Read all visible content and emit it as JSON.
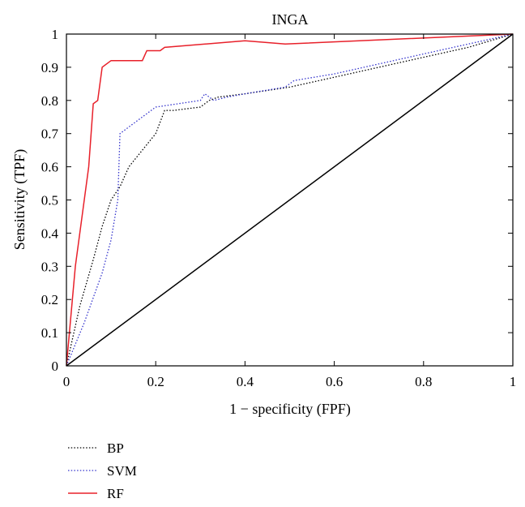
{
  "chart_data": {
    "type": "line",
    "title": "INGA",
    "xlabel": "1 − specificity (FPF)",
    "ylabel": "Sensitivity (TPF)",
    "xlim": [
      0,
      1
    ],
    "ylim": [
      0,
      1
    ],
    "xticks": [
      "0",
      "0.2",
      "0.4",
      "0.6",
      "0.8",
      "1"
    ],
    "yticks": [
      "0",
      "0.1",
      "0.2",
      "0.3",
      "0.4",
      "0.5",
      "0.6",
      "0.7",
      "0.8",
      "0.9",
      "1"
    ],
    "grid": false,
    "legend_position": "below",
    "series": [
      {
        "name": "BP",
        "color": "#000000",
        "style": "dotted",
        "x": [
          0,
          0.03,
          0.06,
          0.08,
          0.1,
          0.12,
          0.14,
          0.17,
          0.2,
          0.22,
          0.24,
          0.3,
          0.32,
          0.34,
          0.4,
          0.5,
          0.6,
          0.7,
          0.8,
          0.9,
          1.0
        ],
        "y": [
          0,
          0.18,
          0.32,
          0.42,
          0.5,
          0.54,
          0.6,
          0.65,
          0.7,
          0.77,
          0.77,
          0.78,
          0.8,
          0.81,
          0.82,
          0.84,
          0.87,
          0.9,
          0.93,
          0.96,
          1.0
        ]
      },
      {
        "name": "SVM",
        "color": "#3333cc",
        "style": "dotted",
        "x": [
          0,
          0.04,
          0.08,
          0.1,
          0.115,
          0.12,
          0.15,
          0.2,
          0.25,
          0.3,
          0.31,
          0.33,
          0.36,
          0.4,
          0.49,
          0.51,
          0.6,
          0.7,
          0.8,
          0.9,
          1.0
        ],
        "y": [
          0,
          0.13,
          0.28,
          0.38,
          0.5,
          0.7,
          0.73,
          0.78,
          0.79,
          0.8,
          0.82,
          0.8,
          0.81,
          0.82,
          0.84,
          0.86,
          0.88,
          0.91,
          0.94,
          0.97,
          1.0
        ]
      },
      {
        "name": "RF",
        "color": "#e8202a",
        "style": "solid",
        "x": [
          0,
          0.02,
          0.04,
          0.05,
          0.06,
          0.07,
          0.08,
          0.1,
          0.17,
          0.18,
          0.21,
          0.22,
          0.4,
          0.49,
          1.0
        ],
        "y": [
          0,
          0.3,
          0.5,
          0.6,
          0.79,
          0.8,
          0.9,
          0.92,
          0.92,
          0.95,
          0.95,
          0.96,
          0.98,
          0.97,
          1.0
        ]
      },
      {
        "name": "",
        "color": "#000000",
        "style": "solid",
        "x": [
          0,
          1
        ],
        "y": [
          0,
          1
        ]
      }
    ]
  }
}
